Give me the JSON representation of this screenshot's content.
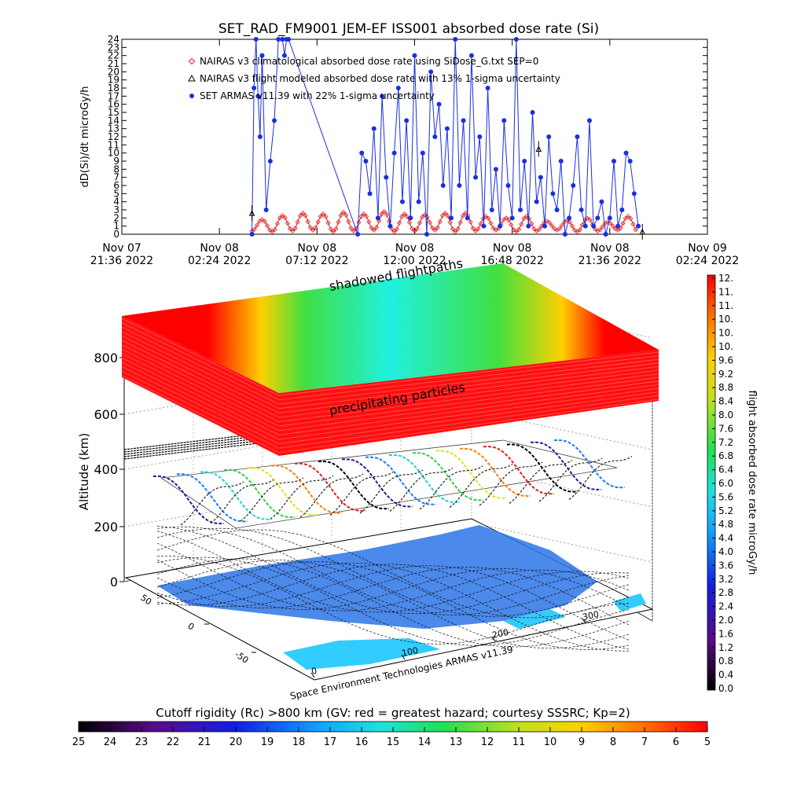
{
  "chart_data": [
    {
      "type": "line",
      "title": "SET_RAD_FM9001  JEM-EF ISS001 absorbed dose rate (Si)",
      "ylabel": "dD(Si)/dt microGy/h",
      "ylim": [
        0,
        24
      ],
      "yticks": [
        "0",
        "1",
        "2",
        "3",
        "4",
        "5",
        "6",
        "7",
        "8",
        "9",
        "10",
        "11",
        "12",
        "13",
        "14",
        "15",
        "16",
        "17",
        "18",
        "19",
        "20",
        "21",
        "22",
        "23",
        "24"
      ],
      "x_ticks": [
        {
          "line1": "Nov 07",
          "line2": "21:36 2022"
        },
        {
          "line1": "Nov 08",
          "line2": "02:24 2022"
        },
        {
          "line1": "Nov 08",
          "line2": "07:12 2022"
        },
        {
          "line1": "Nov 08",
          "line2": "12:00 2022"
        },
        {
          "line1": "Nov 08",
          "line2": "16:48 2022"
        },
        {
          "line1": "Nov 08",
          "line2": "21:36 2022"
        },
        {
          "line1": "Nov 09",
          "line2": "02:24 2022"
        }
      ],
      "xlim_hours": [
        0,
        28.8
      ],
      "legend": [
        {
          "marker": "diamond",
          "color": "#e02020",
          "label": "NAIRAS v3 climatological absorbed dose rate using SiDose_G.txt SEP=0"
        },
        {
          "marker": "triangle",
          "color": "#000000",
          "label": "NAIRAS v3 flight modeled absorbed dose rate with 13% 1-sigma uncertainty"
        },
        {
          "marker": "circle",
          "color": "#1a2fe0",
          "label": "SET ARMAS v11.39 with 22% 1-sigma uncertainty"
        }
      ],
      "series": [
        {
          "name": "SET ARMAS v11.39 with 22% 1-sigma uncertainty",
          "color": "#1a2fe0",
          "x_hours": [
            6.4,
            6.5,
            6.6,
            6.7,
            6.8,
            6.9,
            7.1,
            7.3,
            7.5,
            7.7,
            7.9,
            8.0,
            8.1,
            8.2,
            11.6,
            11.8,
            12.0,
            12.2,
            12.4,
            12.6,
            12.8,
            13.0,
            13.2,
            13.4,
            13.6,
            13.8,
            14.0,
            14.2,
            14.4,
            14.6,
            14.8,
            15.0,
            15.2,
            15.4,
            15.6,
            15.8,
            16.0,
            16.2,
            16.4,
            16.6,
            16.8,
            17.0,
            17.2,
            17.4,
            17.6,
            17.8,
            18.0,
            18.2,
            18.4,
            18.6,
            18.8,
            19.0,
            19.2,
            19.4,
            19.6,
            19.8,
            20.0,
            20.2,
            20.4,
            20.6,
            20.8,
            21.0,
            21.2,
            21.4,
            21.6,
            21.8,
            22.0,
            22.2,
            22.4,
            22.6,
            22.8,
            23.0,
            23.2,
            23.4,
            23.6,
            23.8,
            24.0,
            24.2,
            24.4,
            24.6,
            24.8,
            25.0,
            25.2,
            25.4
          ],
          "values": [
            0,
            18,
            24,
            17,
            12,
            22,
            3,
            9,
            14,
            24,
            24,
            22,
            24,
            24,
            0,
            10,
            9,
            5,
            13,
            2,
            17,
            7,
            1,
            10,
            18,
            4,
            14,
            2,
            22,
            4,
            10,
            0,
            20,
            12,
            16,
            6,
            13,
            2,
            24,
            6,
            14,
            2,
            22,
            7,
            12,
            1,
            18,
            3,
            8,
            1,
            14,
            6,
            2,
            24,
            3,
            9,
            1,
            15,
            4,
            7,
            1,
            12,
            5,
            3,
            9,
            0,
            2,
            6,
            12,
            3,
            1,
            14,
            1,
            2,
            4,
            0,
            2,
            9,
            1,
            3,
            10,
            9,
            5,
            1
          ]
        },
        {
          "name": "NAIRAS v3 climatological absorbed dose rate using SiDose_G.txt SEP=0",
          "color": "#e02020",
          "x_hours": [
            6.4,
            6.9,
            7.4,
            7.9,
            8.4,
            8.9,
            9.4,
            9.9,
            10.4,
            10.9,
            11.4,
            11.9,
            12.4,
            12.9,
            13.4,
            13.9,
            14.4,
            14.9,
            15.4,
            15.9,
            16.4,
            16.9,
            17.4,
            17.9,
            18.4,
            18.9,
            19.4,
            19.9,
            20.4,
            20.9,
            21.4,
            21.9,
            22.4,
            22.9,
            23.4,
            23.9,
            24.4,
            24.9,
            25.4
          ],
          "values": [
            0.4,
            1.8,
            0.3,
            2.3,
            0.4,
            2.6,
            0.5,
            2.5,
            0.3,
            2.7,
            0.4,
            2.5,
            0.5,
            2.8,
            0.3,
            2.5,
            0.4,
            2.4,
            0.5,
            2.6,
            0.3,
            2.6,
            0.4,
            2.2,
            0.5,
            2.0,
            0.3,
            2.2,
            0.4,
            1.6,
            0.5,
            1.7,
            0.3,
            2.0,
            0.4,
            1.5,
            0.5,
            2.2,
            0.3
          ]
        },
        {
          "name": "NAIRAS v3 flight modeled absorbed dose rate with 13% 1-sigma uncertainty",
          "color": "#000000",
          "x_hours": [
            6.4,
            20.5,
            25.6
          ],
          "values": [
            2.6,
            10.5,
            0.3
          ]
        }
      ]
    },
    {
      "type": "surface-3d",
      "zlabel": "Altitude (km)",
      "zticks": [
        "0",
        "200",
        "400",
        "600",
        "800"
      ],
      "layers": [
        "shadowed flightpaths",
        "precipitating particles"
      ],
      "footer_label": "Space Environment Technologies ARMAS v11.39",
      "lon_ticks": [
        "0",
        "100",
        "200",
        "300"
      ],
      "lat_ticks": [
        "-50",
        "0",
        "50"
      ],
      "colorbar": {
        "label": "flight absorbed dose rate microGy/h",
        "ticks": [
          "12.",
          "11.",
          "11.",
          "10.",
          "10.",
          "10.",
          "9.6",
          "9.2",
          "8.8",
          "8.4",
          "8.0",
          "7.6",
          "7.2",
          "6.8",
          "6.4",
          "6.0",
          "5.6",
          "5.2",
          "4.8",
          "4.4",
          "4.0",
          "3.6",
          "3.2",
          "2.8",
          "2.4",
          "2.0",
          "1.6",
          "1.2",
          "0.8",
          "0.4",
          "0.0"
        ]
      }
    },
    {
      "type": "colorbar",
      "label": "Cutoff rigidity (Rc) >800 km (GV: red = greatest hazard; courtesy SSSRC; Kp=2)",
      "ticks": [
        "25",
        "24",
        "23",
        "22",
        "21",
        "20",
        "19",
        "18",
        "17",
        "16",
        "15",
        "14",
        "13",
        "12",
        "11",
        "10",
        "9",
        "8",
        "7",
        "6",
        "5"
      ]
    }
  ]
}
